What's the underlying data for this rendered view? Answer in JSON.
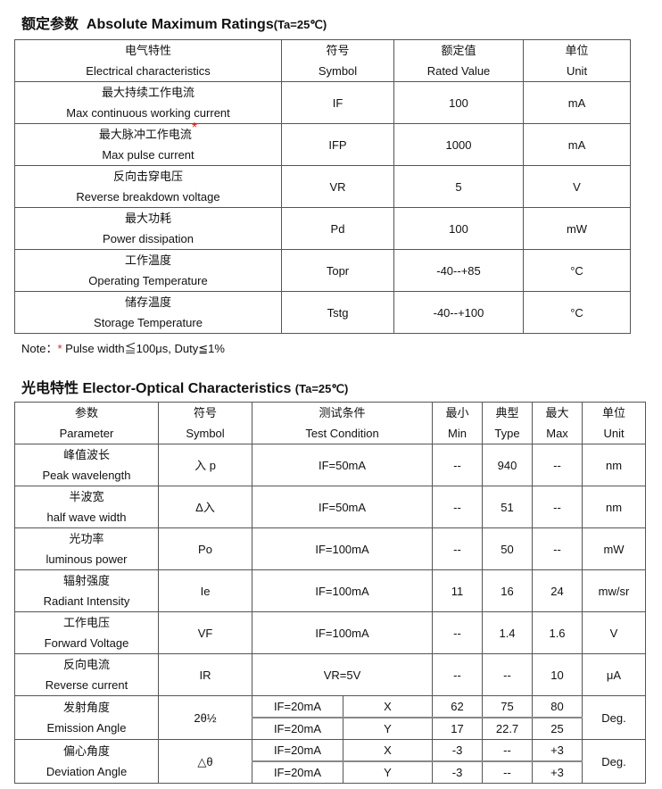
{
  "abs": {
    "title_cn": "额定参数",
    "title_en": "Absolute Maximum Ratings",
    "cond": "(Ta=25℃)",
    "headers": [
      {
        "cn": "电气特性",
        "en": "Electrical characteristics"
      },
      {
        "cn": "符号",
        "en": "Symbol"
      },
      {
        "cn": "额定值",
        "en": "Rated Value"
      },
      {
        "cn": "单位",
        "en": "Unit"
      }
    ],
    "rows": [
      {
        "cn": "最大持续工作电流",
        "en": "Max continuous working current",
        "symbol": "IF",
        "value": "100",
        "unit": "mA"
      },
      {
        "cn": "最大脉冲工作电流",
        "en": "Max pulse current",
        "symbol": "IFP",
        "value": "1000",
        "unit": "mA",
        "star": "*"
      },
      {
        "cn": "反向击穿电压",
        "en": "Reverse breakdown voltage",
        "symbol": "VR",
        "value": "5",
        "unit": "V"
      },
      {
        "cn": "最大功耗",
        "en": "Power dissipation",
        "symbol": "Pd",
        "value": "100",
        "unit": "mW"
      },
      {
        "cn": "工作温度",
        "en": "Operating Temperature",
        "symbol": "Topr",
        "value": "-40--+85",
        "unit": "°C"
      },
      {
        "cn": "储存温度",
        "en": "Storage Temperature",
        "symbol": "Tstg",
        "value": "-40--+100",
        "unit": "°C"
      }
    ],
    "note_label": "Note：",
    "note_star": "*",
    "note_text": " Pulse width≦100μs, Duty≦1%"
  },
  "eo": {
    "title_cn": "光电特性",
    "title_en": "Elector-Optical Characteristics",
    "cond": "(Ta=25℃)",
    "headers": [
      {
        "cn": "参数",
        "en": "Parameter"
      },
      {
        "cn": "符号",
        "en": "Symbol"
      },
      {
        "cn": "测试条件",
        "en": "Test Condition"
      },
      {
        "cn": "最小",
        "en": "Min"
      },
      {
        "cn": "典型",
        "en": "Type"
      },
      {
        "cn": "最大",
        "en": "Max"
      },
      {
        "cn": "单位",
        "en": "Unit"
      }
    ],
    "rows": [
      {
        "cn": "峰值波长",
        "en": "Peak wavelength",
        "symbol": "入 p",
        "cond": "IF=50mA",
        "min": "--",
        "typ": "940",
        "max": "--",
        "unit": "nm"
      },
      {
        "cn": "半波宽",
        "en": "half wave width",
        "symbol": "Δ入",
        "cond": "IF=50mA",
        "min": "--",
        "typ": "51",
        "max": "--",
        "unit": "nm"
      },
      {
        "cn": "光功率",
        "en": "luminous power",
        "symbol": "Po",
        "cond": "IF=100mA",
        "min": "--",
        "typ": "50",
        "max": "--",
        "unit": "mW"
      },
      {
        "cn": "辐射强度",
        "en": "Radiant Intensity",
        "symbol": "Ie",
        "cond": "IF=100mA",
        "min": "11",
        "typ": "16",
        "max": "24",
        "unit": "mw/sr"
      },
      {
        "cn": "工作电压",
        "en": "Forward Voltage",
        "symbol": "VF",
        "cond": "IF=100mA",
        "min": "--",
        "typ": "1.4",
        "max": "1.6",
        "unit": "V"
      },
      {
        "cn": "反向电流",
        "en": "Reverse current",
        "symbol": "IR",
        "cond": "VR=5V",
        "min": "--",
        "typ": "--",
        "max": "10",
        "unit": "μA"
      }
    ],
    "split_rows": [
      {
        "cn": "发射角度",
        "en": "Emission Angle",
        "symbol": "2θ½",
        "unit": "Deg.",
        "subs": [
          {
            "cond": "IF=20mA",
            "axis": "X",
            "min": "62",
            "typ": "75",
            "max": "80"
          },
          {
            "cond": "IF=20mA",
            "axis": "Y",
            "min": "17",
            "typ": "22.7",
            "max": "25"
          }
        ]
      },
      {
        "cn": "偏心角度",
        "en": "Deviation Angle",
        "symbol": "△θ",
        "unit": "Deg.",
        "subs": [
          {
            "cond": "IF=20mA",
            "axis": "X",
            "min": "-3",
            "typ": "--",
            "max": "+3"
          },
          {
            "cond": "IF=20mA",
            "axis": "Y",
            "min": "-3",
            "typ": "--",
            "max": "+3"
          }
        ]
      }
    ]
  }
}
